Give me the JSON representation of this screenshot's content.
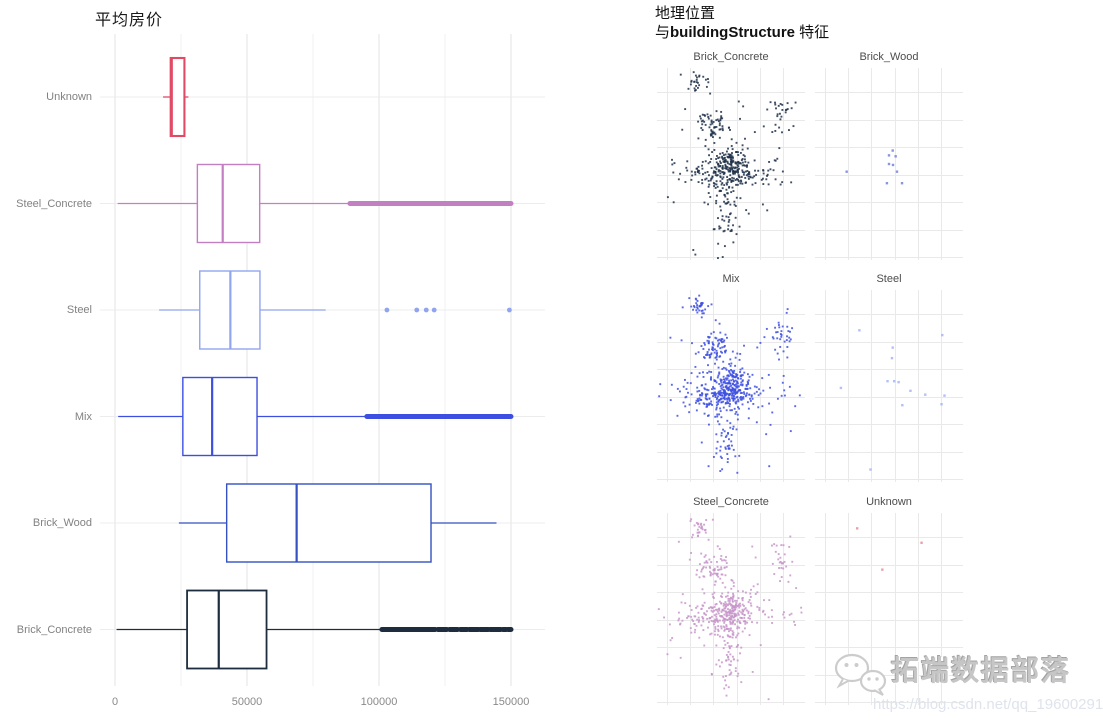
{
  "left": {
    "title": "平均房价"
  },
  "right": {
    "title_line1": "地理位置",
    "title_prefix": "与",
    "title_bold": "buildingStructure",
    "title_suffix": " 特征"
  },
  "watermark": {
    "icon": "wechat-logo",
    "brand": "拓端数据部落",
    "url": "https://blog.csdn.net/qq_19600291"
  },
  "colors": {
    "unknown": "#e04a64",
    "steel_concrete": "#c27fc2",
    "steel": "#91a5ee",
    "mix": "#3d4fe1",
    "brick_wood": "#3351c0",
    "brick_concrete": "#1d2c3f",
    "grid_major": "#e3e3e3",
    "grid_minor": "#f2f2f2",
    "grid_row": "#ececec",
    "facet_grid": "#e9e9e9"
  },
  "chart_data": [
    {
      "type": "boxplot",
      "orientation": "horizontal",
      "title": "平均房价",
      "xlabel": "",
      "ylabel": "",
      "xlim": [
        -6000,
        162000
      ],
      "x_major_gridlines": [
        0,
        50000,
        100000,
        150000
      ],
      "x_minor_gridlines": [
        25000,
        75000,
        125000
      ],
      "x_ticks": [
        0,
        50000,
        100000,
        150000
      ],
      "x_tick_labels": [
        "0",
        "50000",
        "100000",
        "150000"
      ],
      "categories_top_to_bottom": [
        "Unknown",
        "Steel_Concrete",
        "Steel",
        "Mix",
        "Brick_Wood",
        "Brick_Concrete"
      ],
      "series": [
        {
          "category": "Unknown",
          "color": "#e04a64",
          "whisker_low": 18200,
          "q1": 21100,
          "median": 21500,
          "q3": 26300,
          "whisker_high": 27800,
          "outliers": [],
          "outlier_band": null
        },
        {
          "category": "Steel_Concrete",
          "color": "#c27fc2",
          "whisker_low": 1000,
          "q1": 31200,
          "median": 40800,
          "q3": 54800,
          "whisker_high": 88900,
          "outliers": [],
          "outlier_band": {
            "style": "solid",
            "segments": [
              [
                89000,
                150000
              ]
            ]
          }
        },
        {
          "category": "Steel",
          "color": "#91a5ee",
          "whisker_low": 16700,
          "q1": 32100,
          "median": 43700,
          "q3": 54900,
          "whisker_high": 79800,
          "outliers": [
            103000,
            114300,
            117900,
            120900,
            149400
          ],
          "outlier_band": null
        },
        {
          "category": "Mix",
          "color": "#3d4fe1",
          "whisker_low": 1200,
          "q1": 25700,
          "median": 36800,
          "q3": 53800,
          "whisker_high": 94800,
          "outliers": [],
          "outlier_band": {
            "style": "solid",
            "segments": [
              [
                95400,
                150000
              ]
            ]
          }
        },
        {
          "category": "Brick_Wood",
          "color": "#3351c0",
          "whisker_low": 24200,
          "q1": 42300,
          "median": 68800,
          "q3": 119700,
          "whisker_high": 144500,
          "outliers": [],
          "outlier_band": null
        },
        {
          "category": "Brick_Concrete",
          "color": "#1d2c3f",
          "whisker_low": 600,
          "q1": 27300,
          "median": 39300,
          "q3": 57400,
          "whisker_high": 101100,
          "outliers": [],
          "outlier_band": {
            "style": "dashed",
            "segments": [
              [
                101100,
                121300
              ],
              [
                122300,
                125700
              ],
              [
                126700,
                129800
              ],
              [
                130800,
                133400
              ],
              [
                134200,
                137600
              ],
              [
                138300,
                141400
              ],
              [
                142100,
                146100
              ],
              [
                146900,
                148200
              ],
              [
                148900,
                150000
              ]
            ]
          }
        }
      ]
    },
    {
      "type": "scatter",
      "title": "地理位置 与buildingStructure 特征",
      "layout": "facet-grid 2 cols x 3 rows",
      "axis_tick_labels_hidden": true,
      "facets": [
        {
          "label": "Brick_Concrete",
          "color": "#1e3048",
          "n_points": 520,
          "clusters": [
            {
              "cx": 0.5,
              "cy": 0.52,
              "sx": 0.075,
              "sy": 0.065,
              "frac": 0.4
            },
            {
              "cx": 0.36,
              "cy": 0.56,
              "sx": 0.09,
              "sy": 0.045,
              "frac": 0.09
            },
            {
              "cx": 0.38,
              "cy": 0.295,
              "sx": 0.055,
              "sy": 0.04,
              "frac": 0.11
            },
            {
              "cx": 0.285,
              "cy": 0.075,
              "sx": 0.035,
              "sy": 0.025,
              "frac": 0.05
            },
            {
              "cx": 0.84,
              "cy": 0.24,
              "sx": 0.045,
              "sy": 0.06,
              "frac": 0.05
            },
            {
              "cx": 0.5,
              "cy": 0.535,
              "sx": 0.3,
              "sy": 0.028,
              "frac": 0.12
            },
            {
              "cx": 0.47,
              "cy": 0.78,
              "sx": 0.045,
              "sy": 0.085,
              "frac": 0.08
            },
            {
              "cx": 0.5,
              "cy": 0.5,
              "sx": 0.23,
              "sy": 0.21,
              "frac": 0.1
            }
          ]
        },
        {
          "label": "Brick_Wood",
          "color": "#6a7ad8",
          "points": [
            [
              0.214,
              0.54
            ],
            [
              0.5,
              0.455
            ],
            [
              0.525,
              0.43
            ],
            [
              0.545,
              0.46
            ],
            [
              0.5,
              0.5
            ],
            [
              0.527,
              0.505
            ],
            [
              0.554,
              0.54
            ],
            [
              0.486,
              0.6
            ],
            [
              0.588,
              0.6
            ]
          ]
        },
        {
          "label": "Mix",
          "color": "#3d4fe1",
          "n_points": 640,
          "clusters": [
            {
              "cx": 0.5,
              "cy": 0.52,
              "sx": 0.075,
              "sy": 0.065,
              "frac": 0.4
            },
            {
              "cx": 0.36,
              "cy": 0.56,
              "sx": 0.09,
              "sy": 0.045,
              "frac": 0.09
            },
            {
              "cx": 0.38,
              "cy": 0.295,
              "sx": 0.055,
              "sy": 0.04,
              "frac": 0.11
            },
            {
              "cx": 0.285,
              "cy": 0.075,
              "sx": 0.035,
              "sy": 0.025,
              "frac": 0.05
            },
            {
              "cx": 0.84,
              "cy": 0.24,
              "sx": 0.045,
              "sy": 0.06,
              "frac": 0.05
            },
            {
              "cx": 0.5,
              "cy": 0.535,
              "sx": 0.3,
              "sy": 0.028,
              "frac": 0.12
            },
            {
              "cx": 0.47,
              "cy": 0.78,
              "sx": 0.045,
              "sy": 0.085,
              "frac": 0.08
            },
            {
              "cx": 0.5,
              "cy": 0.5,
              "sx": 0.23,
              "sy": 0.21,
              "frac": 0.1
            }
          ]
        },
        {
          "label": "Steel",
          "color": "#9db0f2",
          "points": [
            [
              0.3,
              0.21
            ],
            [
              0.86,
              0.235
            ],
            [
              0.525,
              0.3
            ],
            [
              0.52,
              0.355
            ],
            [
              0.49,
              0.475
            ],
            [
              0.535,
              0.475
            ],
            [
              0.565,
              0.48
            ],
            [
              0.175,
              0.51
            ],
            [
              0.645,
              0.525
            ],
            [
              0.745,
              0.545
            ],
            [
              0.875,
              0.55
            ],
            [
              0.59,
              0.6
            ],
            [
              0.855,
              0.595
            ],
            [
              0.375,
              0.935
            ]
          ]
        },
        {
          "label": "Steel_Concrete",
          "color": "#c795c9",
          "n_points": 560,
          "clusters": [
            {
              "cx": 0.5,
              "cy": 0.52,
              "sx": 0.075,
              "sy": 0.065,
              "frac": 0.4
            },
            {
              "cx": 0.36,
              "cy": 0.56,
              "sx": 0.09,
              "sy": 0.045,
              "frac": 0.09
            },
            {
              "cx": 0.38,
              "cy": 0.295,
              "sx": 0.055,
              "sy": 0.04,
              "frac": 0.11
            },
            {
              "cx": 0.285,
              "cy": 0.075,
              "sx": 0.035,
              "sy": 0.025,
              "frac": 0.05
            },
            {
              "cx": 0.84,
              "cy": 0.24,
              "sx": 0.045,
              "sy": 0.06,
              "frac": 0.05
            },
            {
              "cx": 0.5,
              "cy": 0.535,
              "sx": 0.3,
              "sy": 0.028,
              "frac": 0.12
            },
            {
              "cx": 0.47,
              "cy": 0.78,
              "sx": 0.045,
              "sy": 0.085,
              "frac": 0.08
            },
            {
              "cx": 0.5,
              "cy": 0.5,
              "sx": 0.23,
              "sy": 0.21,
              "frac": 0.1
            }
          ]
        },
        {
          "label": "Unknown",
          "color": "#e58896",
          "points": [
            [
              0.285,
              0.08
            ],
            [
              0.72,
              0.155
            ],
            [
              0.455,
              0.295
            ]
          ]
        }
      ]
    }
  ]
}
